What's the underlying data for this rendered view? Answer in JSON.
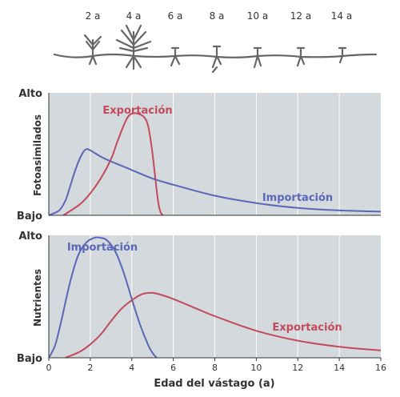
{
  "plant_diagram": {
    "age_labels": [
      "2 a",
      "4 a",
      "6 a",
      "8 a",
      "10 a",
      "12 a",
      "14 a"
    ]
  },
  "colors": {
    "plot_bg": "#d3d9dc",
    "import_color": "#5a67b8",
    "export_color": "#c24a5a",
    "axis_color": "#333333",
    "stem_color": "#666666"
  },
  "chart_data": [
    {
      "type": "line",
      "ylabel": "Fotoasimilados",
      "y_high_label": "Alto",
      "y_low_label": "Bajo",
      "xlim": [
        0,
        16
      ],
      "ylim": [
        0,
        1
      ],
      "grid": "vertical",
      "series": [
        {
          "name": "Exportación",
          "x": [
            0.7,
            1.5,
            2.0,
            2.5,
            3.0,
            3.3,
            3.6,
            3.8,
            4.0,
            4.3,
            4.6,
            4.8,
            5.0,
            5.2,
            5.3,
            5.4,
            5.5
          ],
          "y": [
            0.0,
            0.09,
            0.18,
            0.3,
            0.46,
            0.6,
            0.73,
            0.8,
            0.83,
            0.83,
            0.8,
            0.72,
            0.5,
            0.2,
            0.08,
            0.02,
            0.0
          ]
        },
        {
          "name": "Importación",
          "x": [
            0.0,
            0.5,
            0.8,
            1.0,
            1.3,
            1.6,
            1.8,
            2.0,
            2.5,
            3.0,
            4.0,
            5.0,
            6.0,
            8.0,
            10.0,
            12.0,
            14.0,
            16.0
          ],
          "y": [
            0.0,
            0.04,
            0.12,
            0.22,
            0.38,
            0.5,
            0.54,
            0.53,
            0.48,
            0.44,
            0.37,
            0.3,
            0.25,
            0.16,
            0.1,
            0.06,
            0.04,
            0.03
          ]
        }
      ]
    },
    {
      "type": "line",
      "ylabel": "Nutrientes",
      "y_high_label": "Alto",
      "y_low_label": "Bajo",
      "xlabel": "Edad del vástago (a)",
      "xlim": [
        0,
        16
      ],
      "ylim": [
        0,
        1
      ],
      "xticks": [
        0,
        2,
        4,
        6,
        8,
        10,
        12,
        14,
        16
      ],
      "grid": "vertical",
      "series": [
        {
          "name": "Importación",
          "x": [
            0.0,
            0.3,
            0.6,
            1.0,
            1.4,
            1.8,
            2.2,
            2.5,
            2.8,
            3.2,
            3.6,
            4.0,
            4.4,
            4.8,
            5.0,
            5.2
          ],
          "y": [
            0.0,
            0.1,
            0.3,
            0.6,
            0.83,
            0.94,
            0.98,
            0.98,
            0.96,
            0.87,
            0.7,
            0.48,
            0.27,
            0.1,
            0.04,
            0.0
          ]
        },
        {
          "name": "Exportación",
          "x": [
            0.8,
            1.5,
            2.0,
            2.5,
            3.0,
            3.5,
            4.0,
            4.5,
            5.0,
            5.5,
            6.0,
            7.0,
            8.0,
            10.0,
            12.0,
            14.0,
            16.0
          ],
          "y": [
            0.0,
            0.05,
            0.11,
            0.19,
            0.3,
            0.4,
            0.47,
            0.52,
            0.53,
            0.51,
            0.48,
            0.41,
            0.34,
            0.22,
            0.14,
            0.09,
            0.06
          ]
        }
      ]
    }
  ],
  "series_labels": {
    "top_export": "Exportación",
    "top_import": "Importación",
    "bottom_import": "Importación",
    "bottom_export": "Exportación"
  }
}
